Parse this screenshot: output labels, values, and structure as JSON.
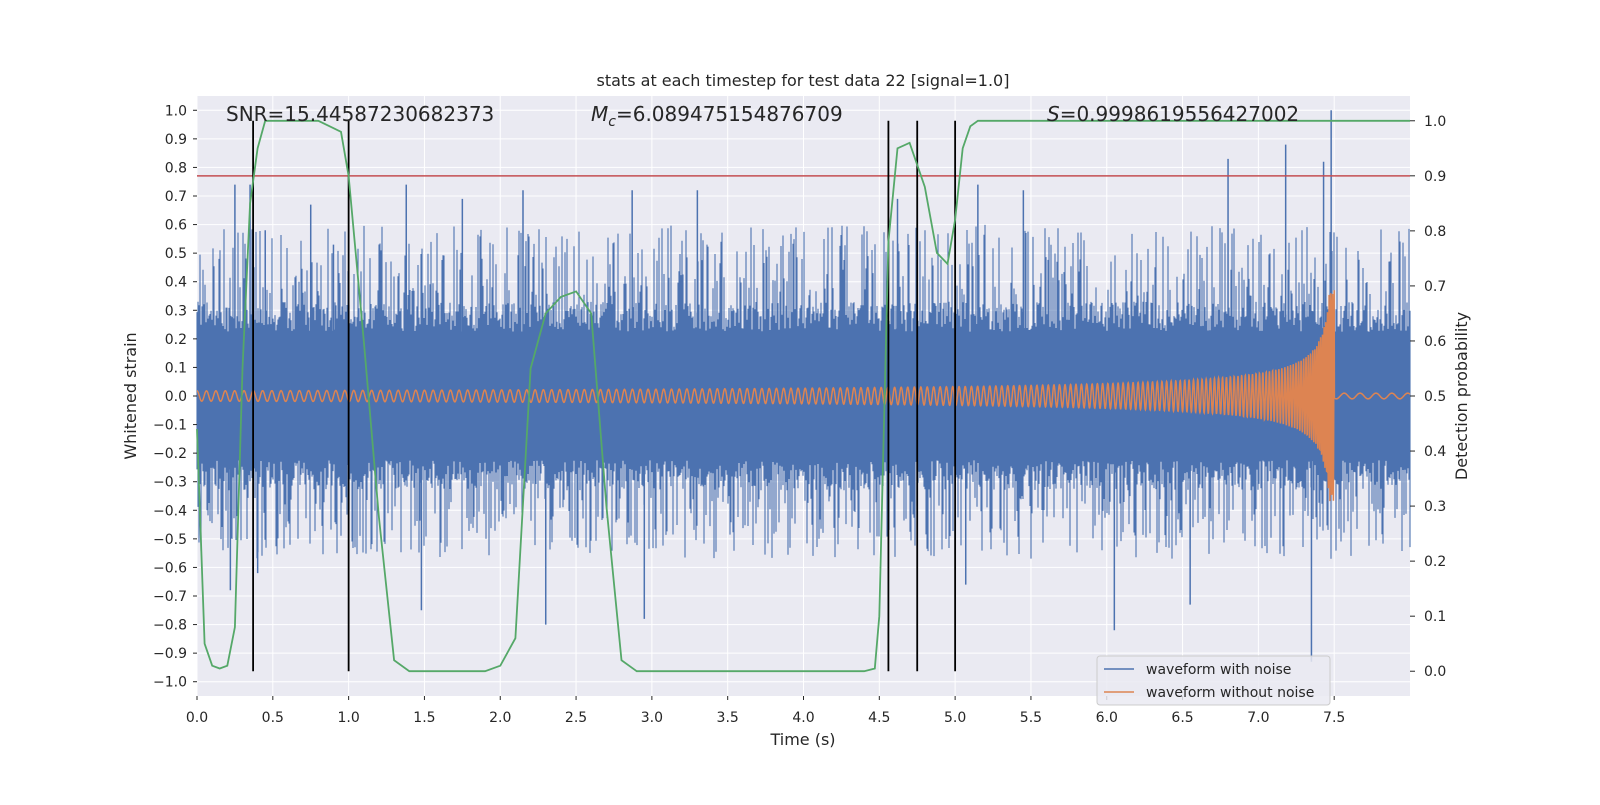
{
  "chart_data": {
    "type": "line",
    "title": "stats at each timestep for test data 22 [signal=1.0]",
    "xlabel": "Time (s)",
    "ylabel": "Whitened strain",
    "ylabel_right": "Detection probability",
    "xlim": [
      0.0,
      8.0
    ],
    "ylim": [
      -1.05,
      1.05
    ],
    "ylim_right": [
      -0.045,
      1.045
    ],
    "x_ticks": [
      "0.0",
      "0.5",
      "1.0",
      "1.5",
      "2.0",
      "2.5",
      "3.0",
      "3.5",
      "4.0",
      "4.5",
      "5.0",
      "5.5",
      "6.0",
      "6.5",
      "7.0",
      "7.5"
    ],
    "y_ticks": [
      "1.0",
      "0.9",
      "0.8",
      "0.7",
      "0.6",
      "0.5",
      "0.4",
      "0.3",
      "0.2",
      "0.1",
      "0.0",
      "−0.1",
      "−0.2",
      "−0.3",
      "−0.4",
      "−0.5",
      "−0.6",
      "−0.7",
      "−0.8",
      "−0.9",
      "−1.0"
    ],
    "y_ticks_right": [
      "1.0",
      "0.9",
      "0.8",
      "0.7",
      "0.6",
      "0.5",
      "0.4",
      "0.3",
      "0.2",
      "0.1",
      "0.0"
    ],
    "annotations": {
      "snr": "SNR=15.44587230682373",
      "mc_symbol": "M",
      "mc_sub": "c",
      "mc_value": "=6.089475154876709",
      "s_symbol": "S",
      "s_value": "=0.9998619556427002"
    },
    "threshold": {
      "axis": "right",
      "value": 0.9,
      "color": "#c44e52"
    },
    "vertical_lines": [
      0.37,
      1.0,
      4.56,
      4.75,
      5.0
    ],
    "vertical_line_range_right": [
      0.0,
      1.0
    ],
    "series": [
      {
        "name": "waveform with noise",
        "color": "#4c72b0",
        "axis": "left",
        "description_values": {
          "band_low": -0.3,
          "band_high": 0.3,
          "spikes": [
            {
              "x": 0.25,
              "y": 0.74
            },
            {
              "x": 0.35,
              "y": 0.74
            },
            {
              "x": 0.45,
              "y": 0.58
            },
            {
              "x": 0.75,
              "y": 0.67
            },
            {
              "x": 0.9,
              "y": 0.53
            },
            {
              "x": 1.38,
              "y": 0.74
            },
            {
              "x": 1.75,
              "y": 0.69
            },
            {
              "x": 2.15,
              "y": 0.72
            },
            {
              "x": 2.87,
              "y": 0.72
            },
            {
              "x": 3.3,
              "y": 0.72
            },
            {
              "x": 4.62,
              "y": 0.69
            },
            {
              "x": 5.15,
              "y": 0.74
            },
            {
              "x": 5.45,
              "y": 0.72
            },
            {
              "x": 6.8,
              "y": 0.83
            },
            {
              "x": 7.18,
              "y": 0.88
            },
            {
              "x": 7.43,
              "y": 0.82
            },
            {
              "x": 7.48,
              "y": 1.0
            },
            {
              "x": 0.22,
              "y": -0.68
            },
            {
              "x": 0.4,
              "y": -0.62
            },
            {
              "x": 1.48,
              "y": -0.75
            },
            {
              "x": 2.3,
              "y": -0.8
            },
            {
              "x": 2.95,
              "y": -0.78
            },
            {
              "x": 5.07,
              "y": -0.66
            },
            {
              "x": 6.05,
              "y": -0.82
            },
            {
              "x": 6.55,
              "y": -0.73
            },
            {
              "x": 7.35,
              "y": -0.93
            }
          ]
        }
      },
      {
        "name": "waveform without noise",
        "color": "#dd8452",
        "axis": "left",
        "description_values": {
          "amp_start": 0.018,
          "amp_end": 0.37,
          "f_start": 16,
          "f_end": 90,
          "t_merge": 7.5
        }
      },
      {
        "name": "detection probability",
        "color": "#55a868",
        "axis": "right",
        "t": [
          0.0,
          0.05,
          0.1,
          0.15,
          0.2,
          0.25,
          0.3,
          0.35,
          0.4,
          0.45,
          0.5,
          0.8,
          0.95,
          1.0,
          1.1,
          1.2,
          1.3,
          1.4,
          1.5,
          1.9,
          2.0,
          2.1,
          2.2,
          2.3,
          2.4,
          2.5,
          2.6,
          2.7,
          2.8,
          2.9,
          3.0,
          4.4,
          4.47,
          4.5,
          4.56,
          4.62,
          4.7,
          4.8,
          4.88,
          4.95,
          5.0,
          5.05,
          5.1,
          5.15,
          5.3,
          8.0
        ],
        "p": [
          0.44,
          0.05,
          0.01,
          0.005,
          0.01,
          0.08,
          0.55,
          0.85,
          0.95,
          1.0,
          1.0,
          1.0,
          0.98,
          0.9,
          0.6,
          0.28,
          0.02,
          0.0,
          0.0,
          0.0,
          0.01,
          0.06,
          0.55,
          0.65,
          0.68,
          0.69,
          0.65,
          0.3,
          0.02,
          0.0,
          0.0,
          0.0,
          0.005,
          0.1,
          0.78,
          0.95,
          0.96,
          0.88,
          0.76,
          0.74,
          0.82,
          0.95,
          0.99,
          1.0,
          1.0,
          1.0
        ]
      }
    ],
    "legend": {
      "placement": "lower-right",
      "entries": [
        "waveform with noise",
        "waveform without noise"
      ]
    }
  }
}
